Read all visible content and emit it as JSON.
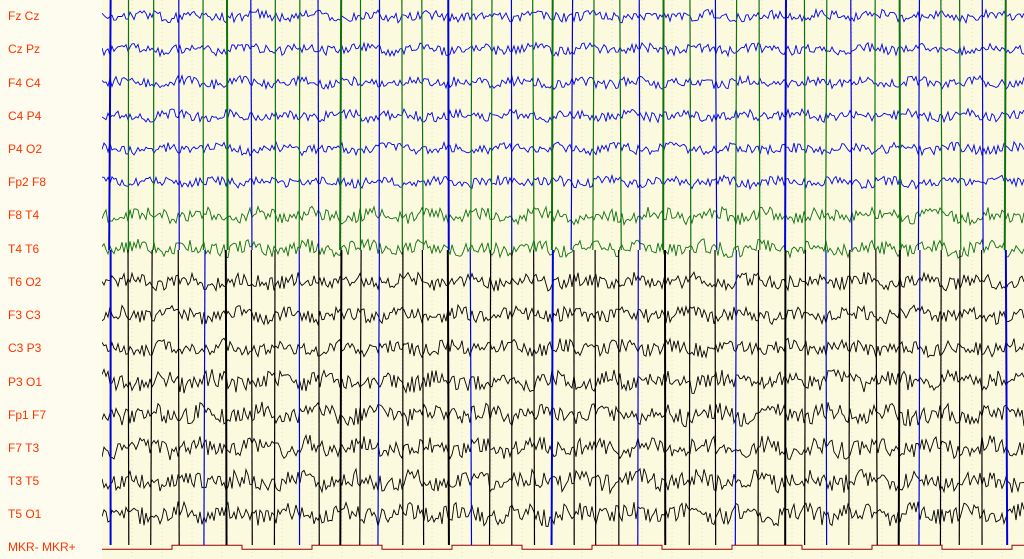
{
  "channels": [
    {
      "label": "Fz Cz",
      "color": "#0000ee"
    },
    {
      "label": "Cz Pz",
      "color": "#0000ee"
    },
    {
      "label": "F4 C4",
      "color": "#0000ee"
    },
    {
      "label": "C4 P4",
      "color": "#0000ee"
    },
    {
      "label": "P4 O2",
      "color": "#0000ee"
    },
    {
      "label": "Fp2 F8",
      "color": "#0000ee"
    },
    {
      "label": "F8 T4",
      "color": "#107010"
    },
    {
      "label": "T4 T6",
      "color": "#107010"
    },
    {
      "label": "T6 O2",
      "color": "#000000"
    },
    {
      "label": "F3 C3",
      "color": "#000000"
    },
    {
      "label": "C3 P3",
      "color": "#000000"
    },
    {
      "label": "P3 O1",
      "color": "#000000"
    },
    {
      "label": "Fp1 F7",
      "color": "#000000"
    },
    {
      "label": "F7 T3",
      "color": "#000000"
    },
    {
      "label": "T3 T5",
      "color": "#000000"
    },
    {
      "label": "T5 O1",
      "color": "#000000"
    },
    {
      "label": "MKR- MKR+",
      "color": "#990000"
    }
  ],
  "colors": {
    "background": "#fbfadf",
    "label_text": "#ff3300",
    "spike_green": "#107010",
    "spike_blue": "#0000dd",
    "spike_black": "#000000",
    "marker": "#990000",
    "grid": "#c8c8a0"
  }
}
